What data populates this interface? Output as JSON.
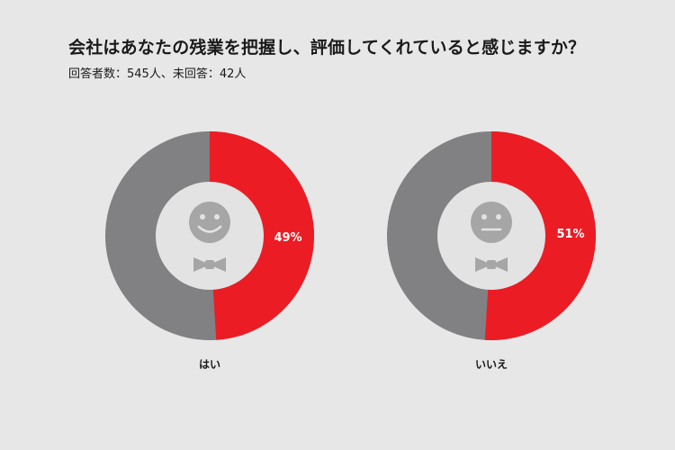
{
  "title": "会社はあなたの残業を把握し、評価してくれていると感じますか？",
  "subtitle": "回答者数：545人、未回答：42人",
  "colors": {
    "background": "#e7e7e7",
    "highlight": "#ec1c24",
    "remainder": "#818183",
    "inner_circle": "#e3e3e3",
    "face": "#a6a6a6"
  },
  "chart_data": [
    {
      "type": "pie",
      "category": "はい",
      "value": 49,
      "value_label": "49%",
      "face_icon": "smiling-face-icon"
    },
    {
      "type": "pie",
      "category": "いいえ",
      "value": 51,
      "value_label": "51%",
      "face_icon": "neutral-face-icon"
    }
  ]
}
